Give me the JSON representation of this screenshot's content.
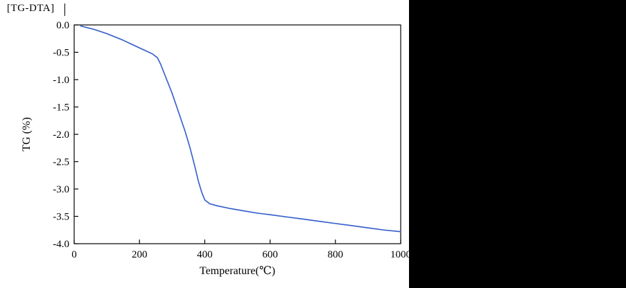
{
  "window": {
    "header_label": "[TG-DTA]",
    "cursor_glyph": ""
  },
  "colors": {
    "curve": "#3a63cd",
    "axis": "#000000",
    "plot_bg": "#ffffff",
    "side_panel": "#000000"
  },
  "chart_data": {
    "type": "line",
    "title": "",
    "xlabel": "Temperature(℃)",
    "ylabel": "TG (%)",
    "xlim": [
      0,
      1000
    ],
    "ylim": [
      -4.0,
      0.0
    ],
    "grid": false,
    "legend": "none",
    "x_ticks": [
      {
        "value": 0,
        "label": "0"
      },
      {
        "value": 200,
        "label": "200"
      },
      {
        "value": 400,
        "label": "400"
      },
      {
        "value": 600,
        "label": "600"
      },
      {
        "value": 800,
        "label": "800"
      },
      {
        "value": 1000,
        "label": "1000"
      }
    ],
    "y_ticks": [
      {
        "value": 0.0,
        "label": "0.0"
      },
      {
        "value": -0.5,
        "label": "-0.5"
      },
      {
        "value": -1.0,
        "label": "-1.0"
      },
      {
        "value": -1.5,
        "label": "-1.5"
      },
      {
        "value": -2.0,
        "label": "-2.0"
      },
      {
        "value": -2.5,
        "label": "-2.5"
      },
      {
        "value": -3.0,
        "label": "-3.0"
      },
      {
        "value": -3.5,
        "label": "-3.5"
      },
      {
        "value": -4.0,
        "label": "-4.0"
      }
    ],
    "series": [
      {
        "name": "TG",
        "color": "#3a63cd",
        "points": [
          [
            20,
            -0.02
          ],
          [
            60,
            -0.08
          ],
          [
            100,
            -0.16
          ],
          [
            150,
            -0.28
          ],
          [
            200,
            -0.42
          ],
          [
            240,
            -0.53
          ],
          [
            255,
            -0.6
          ],
          [
            265,
            -0.72
          ],
          [
            280,
            -0.95
          ],
          [
            300,
            -1.25
          ],
          [
            320,
            -1.6
          ],
          [
            340,
            -1.95
          ],
          [
            355,
            -2.25
          ],
          [
            370,
            -2.6
          ],
          [
            380,
            -2.85
          ],
          [
            390,
            -3.05
          ],
          [
            400,
            -3.2
          ],
          [
            415,
            -3.27
          ],
          [
            440,
            -3.31
          ],
          [
            480,
            -3.36
          ],
          [
            520,
            -3.4
          ],
          [
            560,
            -3.44
          ],
          [
            600,
            -3.47
          ],
          [
            650,
            -3.51
          ],
          [
            700,
            -3.55
          ],
          [
            750,
            -3.59
          ],
          [
            800,
            -3.63
          ],
          [
            850,
            -3.67
          ],
          [
            900,
            -3.71
          ],
          [
            950,
            -3.75
          ],
          [
            1000,
            -3.78
          ]
        ]
      }
    ]
  }
}
